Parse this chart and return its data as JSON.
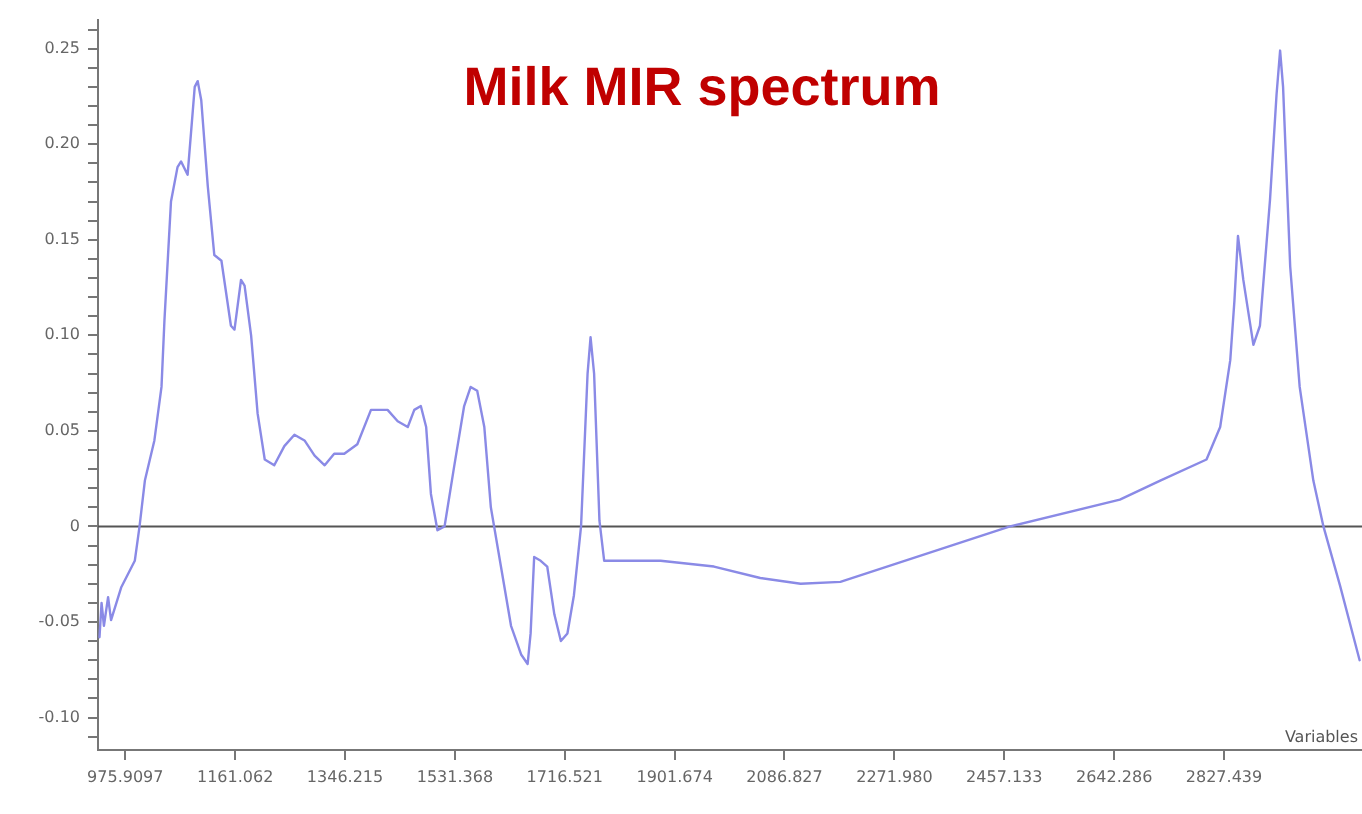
{
  "chart_data": {
    "type": "line",
    "title": "Milk MIR spectrum",
    "xlabel": "Variables",
    "x": [
      932.5,
      936,
      940,
      947,
      952,
      969,
      992,
      1000,
      1009,
      1025,
      1037,
      1042,
      1053,
      1064,
      1070,
      1081,
      1093,
      1098,
      1104,
      1115,
      1126,
      1138,
      1154,
      1160,
      1171,
      1177,
      1188,
      1199,
      1211,
      1227,
      1244,
      1261,
      1278,
      1295,
      1312,
      1328,
      1345,
      1367,
      1390,
      1418,
      1435,
      1452,
      1463,
      1474,
      1483,
      1491,
      1502,
      1514,
      1530,
      1547,
      1558,
      1569,
      1581,
      1592,
      1609,
      1626,
      1643,
      1654,
      1659,
      1665,
      1676,
      1687,
      1699,
      1710,
      1721,
      1732,
      1744,
      1755,
      1760,
      1766,
      1775,
      1783,
      1878,
      1968,
      2046,
      2114,
      2181,
      2467,
      2652,
      2720,
      2798,
      2821,
      2838,
      2845,
      2851,
      2860,
      2877,
      2888,
      2905,
      2916,
      2922,
      2927,
      2939,
      2955,
      2978,
      2995,
      3023,
      3056
    ],
    "series": [
      {
        "color": "#8a8ae6",
        "values": [
          -0.058,
          -0.04,
          -0.052,
          -0.037,
          -0.049,
          -0.032,
          -0.018,
          0.0,
          0.024,
          0.045,
          0.073,
          0.108,
          0.17,
          0.188,
          0.191,
          0.184,
          0.23,
          0.233,
          0.223,
          0.178,
          0.142,
          0.139,
          0.105,
          0.103,
          0.129,
          0.126,
          0.1,
          0.059,
          0.035,
          0.032,
          0.042,
          0.048,
          0.045,
          0.037,
          0.032,
          0.038,
          0.038,
          0.043,
          0.061,
          0.061,
          0.055,
          0.052,
          0.061,
          0.063,
          0.052,
          0.017,
          -0.002,
          0.0,
          0.031,
          0.063,
          0.073,
          0.071,
          0.052,
          0.01,
          -0.021,
          -0.052,
          -0.067,
          -0.072,
          -0.056,
          -0.016,
          -0.018,
          -0.021,
          -0.046,
          -0.06,
          -0.056,
          -0.036,
          0.0,
          0.08,
          0.099,
          0.08,
          0.003,
          -0.018,
          -0.018,
          -0.021,
          -0.027,
          -0.03,
          -0.029,
          0.0,
          0.014,
          0.024,
          0.035,
          0.052,
          0.087,
          0.118,
          0.152,
          0.129,
          0.095,
          0.105,
          0.171,
          0.226,
          0.249,
          0.23,
          0.136,
          0.073,
          0.024,
          0.0,
          -0.031,
          -0.07
        ]
      }
    ],
    "xlim": [
      930,
      3060
    ],
    "xticks": [
      975.9097,
      1161.062,
      1346.215,
      1531.368,
      1716.521,
      1901.674,
      2086.827,
      {
        "value": 2271.98,
        "label": "2271.980"
      },
      2457.133,
      2642.286,
      2827.439
    ],
    "ylim": [
      -0.117,
      0.265
    ],
    "yticks": [
      {
        "value": -0.11,
        "label": null
      },
      {
        "value": -0.1,
        "label": "-0.10"
      },
      {
        "value": -0.09,
        "label": null
      },
      {
        "value": -0.08,
        "label": null
      },
      {
        "value": -0.07,
        "label": null
      },
      {
        "value": -0.06,
        "label": null
      },
      -0.05,
      {
        "value": -0.04,
        "label": null
      },
      {
        "value": -0.03,
        "label": null
      },
      {
        "value": -0.02,
        "label": null
      },
      {
        "value": -0.01,
        "label": null
      },
      0,
      {
        "value": 0.01,
        "label": null
      },
      {
        "value": 0.02,
        "label": null
      },
      {
        "value": 0.03,
        "label": null
      },
      {
        "value": 0.04,
        "label": null
      },
      0.05,
      {
        "value": 0.06,
        "label": null
      },
      {
        "value": 0.07,
        "label": null
      },
      {
        "value": 0.08,
        "label": null
      },
      {
        "value": 0.09,
        "label": null
      },
      {
        "value": 0.1,
        "label": "0.10"
      },
      {
        "value": 0.11,
        "label": null
      },
      {
        "value": 0.12,
        "label": null
      },
      {
        "value": 0.13,
        "label": null
      },
      {
        "value": 0.14,
        "label": null
      },
      0.15,
      {
        "value": 0.16,
        "label": null
      },
      {
        "value": 0.17,
        "label": null
      },
      {
        "value": 0.18,
        "label": null
      },
      {
        "value": 0.19,
        "label": null
      },
      {
        "value": 0.2,
        "label": "0.20"
      },
      {
        "value": 0.21,
        "label": null
      },
      {
        "value": 0.22,
        "label": null
      },
      {
        "value": 0.23,
        "label": null
      },
      {
        "value": 0.24,
        "label": null
      },
      0.25,
      {
        "value": 0.26,
        "label": null
      }
    ],
    "ref_lines": [
      {
        "axis": "y",
        "value": 0,
        "color": "#555555"
      }
    ],
    "grid": false,
    "legend": false,
    "marker": "none",
    "line_style": "solid"
  }
}
